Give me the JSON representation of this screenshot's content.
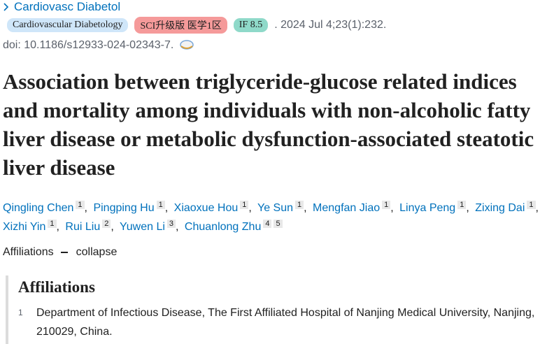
{
  "journal": {
    "abbrev": "Cardiovasc Diabetol",
    "badges": [
      "Cardiovascular Diabetology",
      "SCI升级版 医学1区",
      "IF 8.5"
    ],
    "citation": ". 2024 Jul 4;23(1):232.",
    "doi": "doi: 10.1186/s12933-024-02343-7."
  },
  "title": "Association between triglyceride-glucose related indices and mortality among individuals with non-alcoholic fatty liver disease or metabolic dysfunction-associated steatotic liver disease",
  "authors": {
    "separator": ",",
    "list": [
      {
        "name": "Qingling Chen",
        "affiliations": [
          "1"
        ]
      },
      {
        "name": "Pingping Hu",
        "affiliations": [
          "1"
        ]
      },
      {
        "name": "Xiaoxue Hou",
        "affiliations": [
          "1"
        ]
      },
      {
        "name": "Ye Sun",
        "affiliations": [
          "1"
        ]
      },
      {
        "name": "Mengfan Jiao",
        "affiliations": [
          "1"
        ]
      },
      {
        "name": "Linya Peng",
        "affiliations": [
          "1"
        ]
      },
      {
        "name": "Zixing Dai",
        "affiliations": [
          "1"
        ]
      },
      {
        "name": "Xizhi Yin",
        "affiliations": [
          "1"
        ]
      },
      {
        "name": "Rui Liu",
        "affiliations": [
          "2"
        ]
      },
      {
        "name": "Yuwen Li",
        "affiliations": [
          "3"
        ]
      },
      {
        "name": "Chuanlong Zhu",
        "affiliations": [
          "4",
          "5"
        ]
      }
    ]
  },
  "affiliations_toggle": {
    "label": "Affiliations",
    "action": "collapse"
  },
  "affiliations": {
    "heading": "Affiliations",
    "items": [
      {
        "number": "1",
        "text": "Department of Infectious Disease, The First Affiliated Hospital of Nanjing Medical University, Nanjing, 210029, China."
      }
    ]
  }
}
